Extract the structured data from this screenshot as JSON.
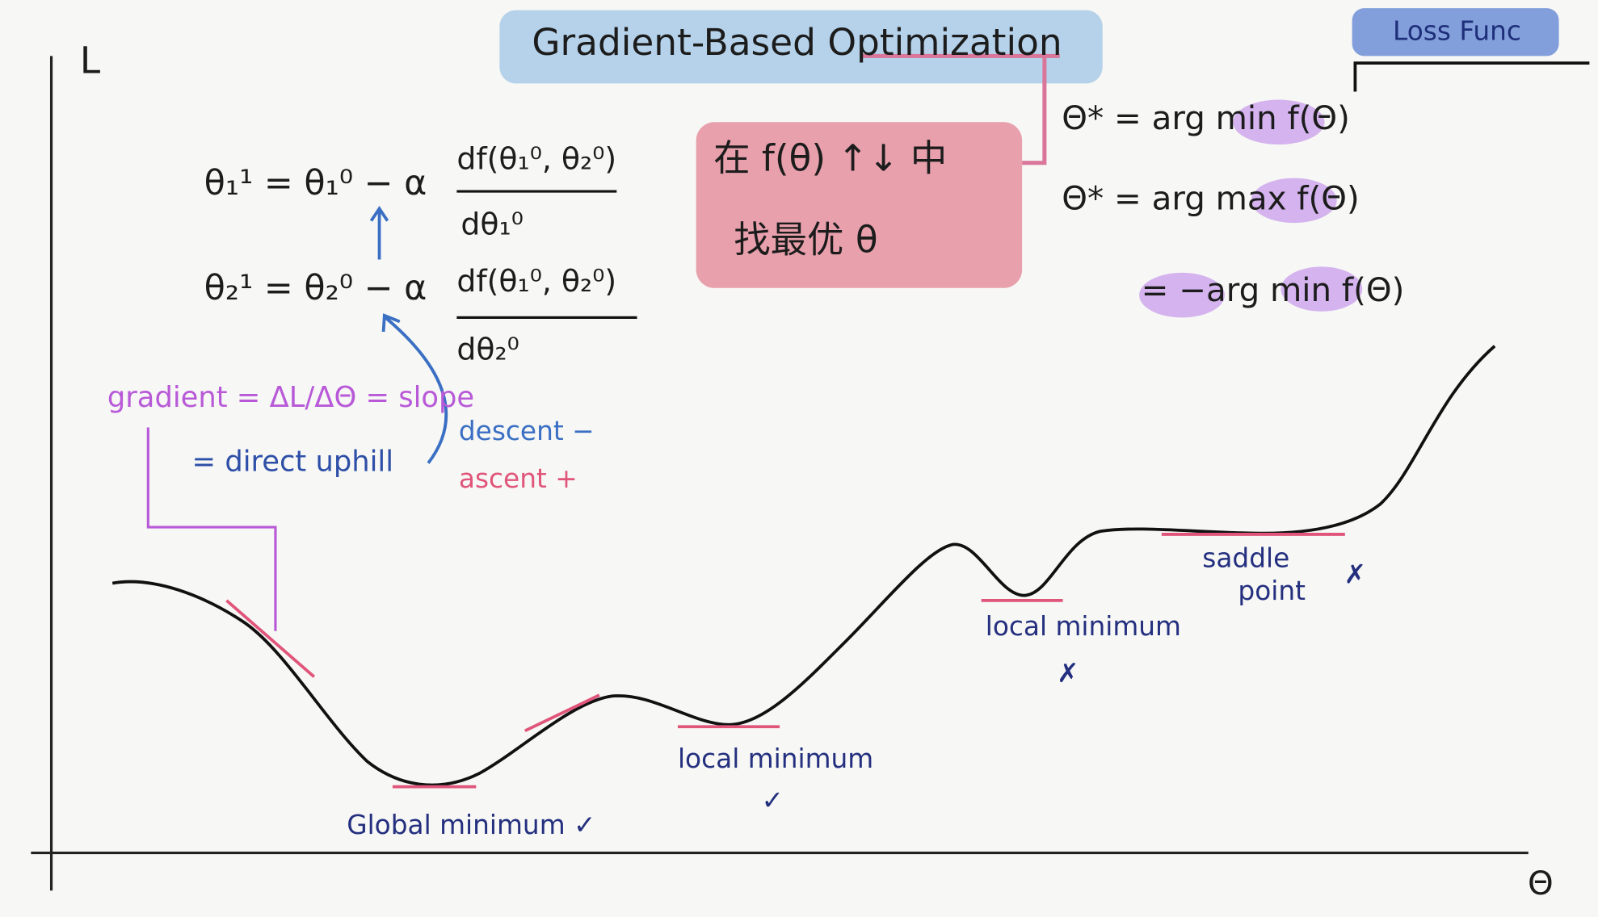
{
  "title": "Gradient-Based Optimization",
  "tag": "Loss Func",
  "axes": {
    "y": "L",
    "x": "Θ"
  },
  "update_rules": [
    {
      "lhs": "θ₁¹ = θ₁⁰ − α",
      "numerator": "df(θ₁⁰, θ₂⁰)",
      "denominator": "dθ₁⁰"
    },
    {
      "lhs": "θ₂¹ = θ₂⁰ − α",
      "numerator": "df(θ₁⁰, θ₂⁰)",
      "denominator": "dθ₂⁰"
    }
  ],
  "note_box": [
    "在  f(θ) ↑↓ 中",
    "找最优 θ"
  ],
  "objectives": [
    "Θ* = arg min f(Θ)",
    "Θ* = arg max f(Θ)",
    "= −arg min f(Θ)"
  ],
  "gradient_note": [
    "gradient = ΔL/ΔΘ = slope",
    "= direct uphill"
  ],
  "direction": {
    "descent": "descent −",
    "ascent": "ascent +"
  },
  "curve_labels": [
    "Global minimum ✓",
    "local minimum",
    "✓",
    "local minimum",
    "✗",
    "saddle",
    "point",
    "✗"
  ]
}
